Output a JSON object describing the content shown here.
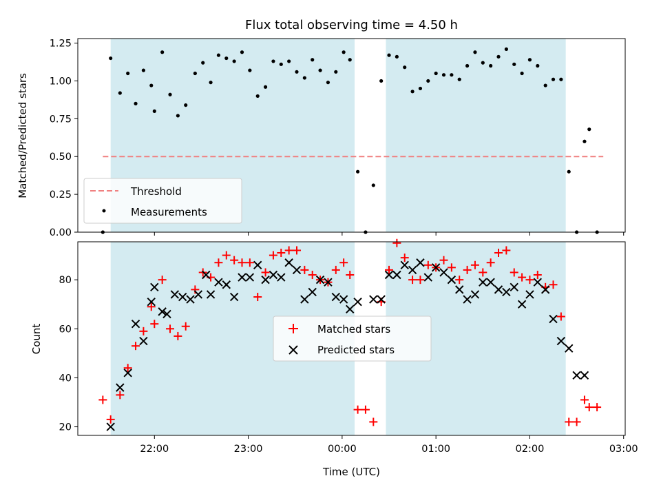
{
  "chart_data": [
    {
      "type": "scatter",
      "title": "Flux total observing time = 4.50 h",
      "xlabel": "",
      "ylabel": "Matched/Predicted stars",
      "xlim": [
        "21:11",
        "03:01"
      ],
      "ylim": [
        0,
        1.28
      ],
      "yticks": [
        "0.00",
        "0.25",
        "0.50",
        "0.75",
        "1.00",
        "1.25"
      ],
      "xticks": [
        "22:00",
        "23:00",
        "00:00",
        "01:00",
        "02:00",
        "03:00"
      ],
      "xtick_labels_shown": false,
      "shaded_intervals": [
        [
          "21:32",
          "00:08"
        ],
        [
          "00:28",
          "02:23"
        ]
      ],
      "shade_color": "#d4ebf1",
      "legend_position": "lower-left",
      "threshold": {
        "name": "Threshold",
        "y": 0.5,
        "x_from": "21:27",
        "x_to": "02:47",
        "color": "#f08080"
      },
      "series": [
        {
          "name": "Measurements",
          "marker": "dot",
          "color": "#000000",
          "x": [
            "21:27",
            "21:32",
            "21:38",
            "21:43",
            "21:48",
            "21:53",
            "21:58",
            "22:00",
            "22:05",
            "22:10",
            "22:15",
            "22:20",
            "22:26",
            "22:31",
            "22:36",
            "22:41",
            "22:46",
            "22:51",
            "22:56",
            "23:01",
            "23:06",
            "23:11",
            "23:16",
            "23:21",
            "23:26",
            "23:31",
            "23:36",
            "23:41",
            "23:46",
            "23:51",
            "23:56",
            "00:01",
            "00:05",
            "00:10",
            "00:15",
            "00:20",
            "00:25",
            "00:30",
            "00:35",
            "00:40",
            "00:45",
            "00:50",
            "00:55",
            "01:00",
            "01:05",
            "01:10",
            "01:15",
            "01:20",
            "01:25",
            "01:30",
            "01:35",
            "01:40",
            "01:45",
            "01:50",
            "01:55",
            "02:00",
            "02:05",
            "02:10",
            "02:15",
            "02:20",
            "02:25",
            "02:30",
            "02:35",
            "02:38",
            "02:43"
          ],
          "y": [
            0.0,
            1.15,
            0.92,
            1.05,
            0.85,
            1.07,
            0.97,
            0.8,
            1.19,
            0.91,
            0.77,
            0.84,
            1.05,
            1.12,
            0.99,
            1.17,
            1.15,
            1.13,
            1.19,
            1.07,
            0.9,
            0.96,
            1.13,
            1.11,
            1.13,
            1.06,
            1.02,
            1.14,
            1.07,
            0.99,
            1.06,
            1.19,
            1.14,
            0.4,
            0.0,
            0.31,
            1.0,
            1.17,
            1.16,
            1.09,
            0.93,
            0.95,
            1.0,
            1.05,
            1.04,
            1.04,
            1.01,
            1.1,
            1.19,
            1.12,
            1.1,
            1.16,
            1.21,
            1.11,
            1.05,
            1.14,
            1.1,
            0.97,
            1.01,
            1.01,
            0.4,
            0.0,
            0.6,
            0.68,
            0.0
          ]
        }
      ]
    },
    {
      "type": "scatter",
      "title": "",
      "xlabel": "Time (UTC)",
      "ylabel": "Count",
      "xlim": [
        "21:11",
        "03:01"
      ],
      "ylim": [
        16.5,
        95.5
      ],
      "yticks": [
        "20",
        "40",
        "60",
        "80"
      ],
      "xticks": [
        "22:00",
        "23:00",
        "00:00",
        "01:00",
        "02:00",
        "03:00"
      ],
      "shaded_intervals": [
        [
          "21:32",
          "00:08"
        ],
        [
          "00:28",
          "02:23"
        ]
      ],
      "shade_color": "#d4ebf1",
      "legend_position": "center",
      "series": [
        {
          "name": "Matched stars",
          "marker": "plus",
          "color": "#ff0000",
          "x": [
            "21:27",
            "21:32",
            "21:38",
            "21:43",
            "21:48",
            "21:53",
            "21:58",
            "22:00",
            "22:05",
            "22:10",
            "22:15",
            "22:20",
            "22:26",
            "22:31",
            "22:36",
            "22:41",
            "22:46",
            "22:51",
            "22:56",
            "23:01",
            "23:06",
            "23:11",
            "23:16",
            "23:21",
            "23:26",
            "23:31",
            "23:36",
            "23:41",
            "23:46",
            "23:51",
            "23:56",
            "00:01",
            "00:05",
            "00:10",
            "00:15",
            "00:20",
            "00:25",
            "00:30",
            "00:35",
            "00:40",
            "00:45",
            "00:50",
            "00:55",
            "01:00",
            "01:05",
            "01:10",
            "01:15",
            "01:20",
            "01:25",
            "01:30",
            "01:35",
            "01:40",
            "01:45",
            "01:50",
            "01:55",
            "02:00",
            "02:05",
            "02:10",
            "02:15",
            "02:20",
            "02:25",
            "02:30",
            "02:35",
            "02:38",
            "02:43"
          ],
          "y": [
            31,
            23,
            33,
            44,
            53,
            59,
            69,
            62,
            80,
            60,
            57,
            61,
            76,
            83,
            81,
            87,
            90,
            88,
            87,
            87,
            73,
            83,
            90,
            91,
            92,
            92,
            84,
            82,
            80,
            79,
            84,
            87,
            82,
            27,
            27,
            22,
            71,
            84,
            95,
            89,
            80,
            80,
            86,
            85,
            88,
            85,
            80,
            84,
            86,
            83,
            87,
            91,
            92,
            83,
            81,
            80,
            82,
            77,
            78,
            65,
            22,
            22,
            31,
            28,
            28
          ]
        },
        {
          "name": "Predicted stars",
          "marker": "x",
          "color": "#000000",
          "x": [
            "21:32",
            "21:38",
            "21:43",
            "21:48",
            "21:53",
            "21:58",
            "22:00",
            "22:05",
            "22:08",
            "22:13",
            "22:18",
            "22:23",
            "22:28",
            "22:33",
            "22:36",
            "22:41",
            "22:46",
            "22:51",
            "22:56",
            "23:01",
            "23:06",
            "23:11",
            "23:16",
            "23:21",
            "23:26",
            "23:31",
            "23:36",
            "23:41",
            "23:46",
            "23:51",
            "23:56",
            "00:01",
            "00:05",
            "00:10",
            "00:20",
            "00:25",
            "00:30",
            "00:35",
            "00:40",
            "00:45",
            "00:50",
            "00:55",
            "01:00",
            "01:05",
            "01:10",
            "01:15",
            "01:20",
            "01:25",
            "01:30",
            "01:35",
            "01:40",
            "01:45",
            "01:50",
            "01:55",
            "02:00",
            "02:05",
            "02:10",
            "02:15",
            "02:20",
            "02:25",
            "02:30",
            "02:35"
          ],
          "y": [
            20,
            36,
            42,
            62,
            55,
            71,
            77,
            67,
            66,
            74,
            73,
            72,
            74,
            82,
            74,
            79,
            78,
            73,
            81,
            81,
            86,
            80,
            82,
            81,
            87,
            84,
            72,
            75,
            80,
            79,
            73,
            72,
            68,
            71,
            72,
            72,
            82,
            82,
            86,
            84,
            87,
            81,
            85,
            83,
            80,
            76,
            72,
            74,
            79,
            79,
            76,
            75,
            77,
            70,
            74,
            79,
            76,
            64,
            55,
            52,
            41,
            41
          ]
        }
      ]
    }
  ]
}
